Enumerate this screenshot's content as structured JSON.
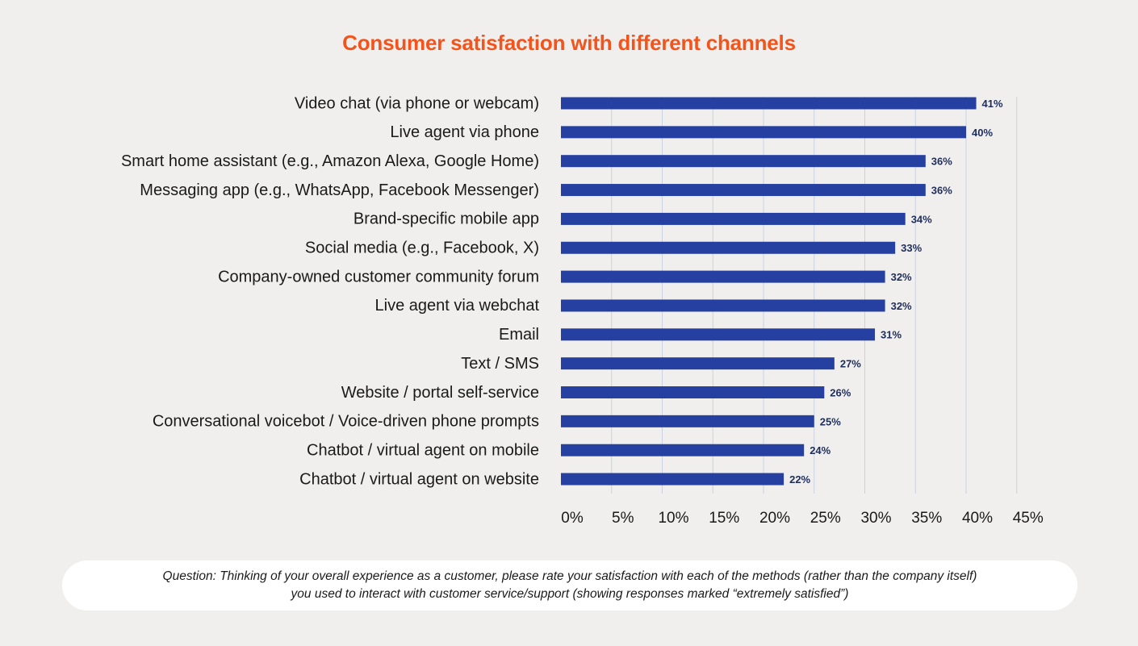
{
  "colors": {
    "background": "#f0efed",
    "title": "#f2541b",
    "bar": "#2540a0",
    "value_label": "#1e2d5a",
    "grid": "#c9d2e2",
    "note_box": "#ffffff"
  },
  "chart_data": {
    "type": "bar",
    "orientation": "horizontal",
    "title": "Consumer satisfaction with different channels",
    "xlabel": "",
    "ylabel": "",
    "categories": [
      "Video chat (via phone or webcam)",
      "Live agent via phone",
      "Smart home assistant (e.g., Amazon Alexa, Google Home)",
      "Messaging app (e.g., WhatsApp, Facebook Messenger)",
      "Brand-specific mobile app",
      "Social media (e.g., Facebook, X)",
      "Company-owned customer community forum",
      "Live agent via webchat",
      "Email",
      "Text / SMS",
      "Website / portal self-service",
      "Conversational voicebot / Voice-driven phone prompts",
      "Chatbot / virtual agent on mobile",
      "Chatbot / virtual agent on website"
    ],
    "values": [
      41,
      40,
      36,
      36,
      34,
      33,
      32,
      32,
      31,
      27,
      26,
      25,
      24,
      22
    ],
    "value_labels": [
      "41%",
      "40%",
      "36%",
      "36%",
      "34%",
      "33%",
      "32%",
      "32%",
      "31%",
      "27%",
      "26%",
      "25%",
      "24%",
      "22%"
    ],
    "xlim": [
      0,
      45
    ],
    "xticks": [
      0,
      5,
      10,
      15,
      20,
      25,
      30,
      35,
      40,
      45
    ],
    "xtick_labels": [
      "0%",
      "5%",
      "10%",
      "15%",
      "20%",
      "25%",
      "30%",
      "35%",
      "40%",
      "45%"
    ],
    "grid": "vertical",
    "legend": "none"
  },
  "footnote": {
    "line1": "Question: Thinking of your overall experience as a customer, please rate your satisfaction with each of the methods (rather than the company itself)",
    "line2": "you used to interact with customer service/support (showing responses marked “extremely satisfied”)"
  }
}
